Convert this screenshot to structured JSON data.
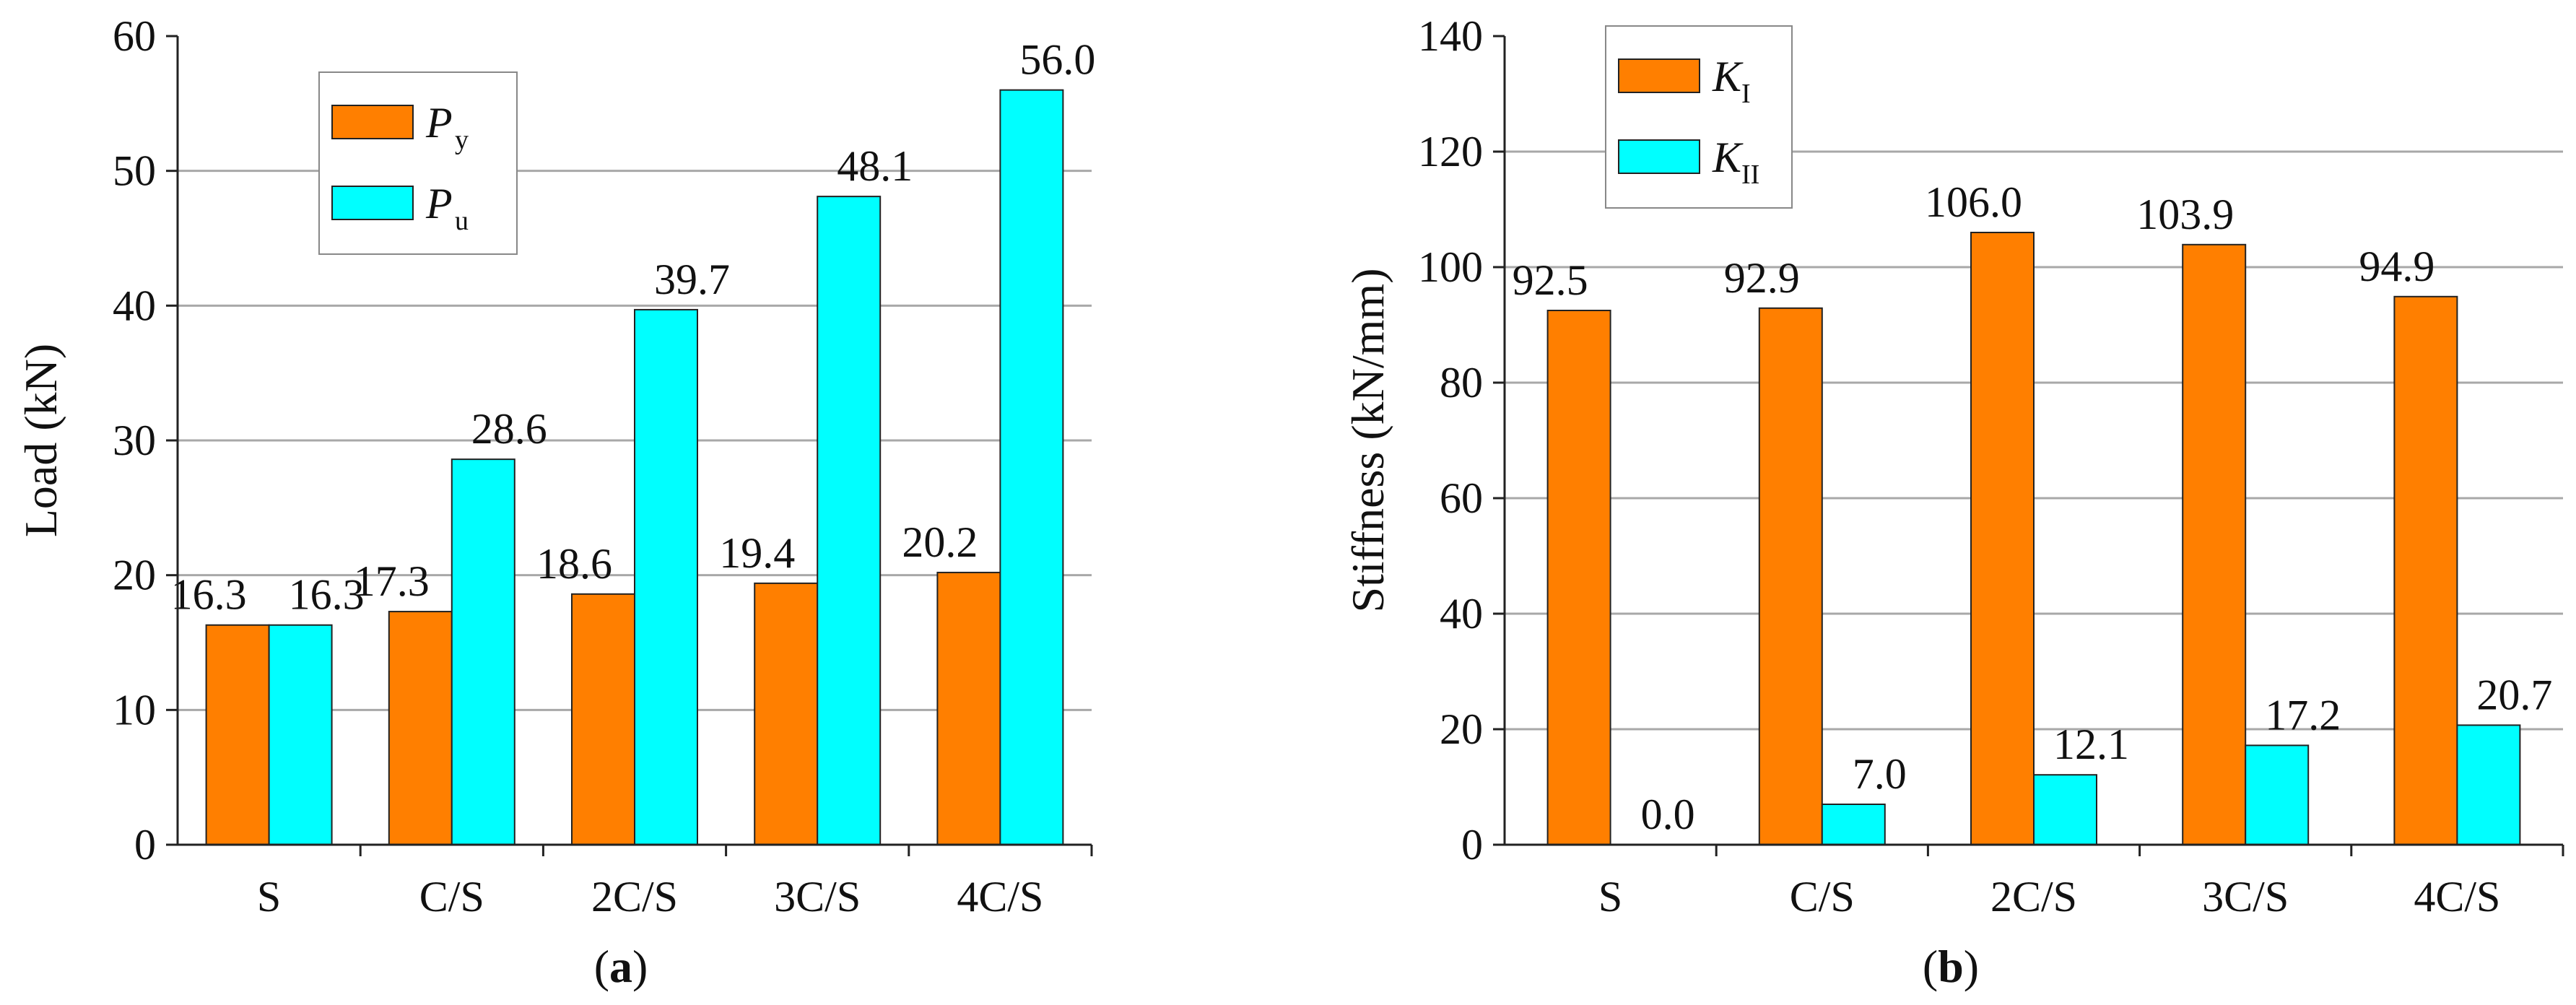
{
  "chart_data": [
    {
      "type": "bar",
      "panel_label": "a",
      "categories": [
        "S",
        "C/S",
        "2C/S",
        "3C/S",
        "4C/S"
      ],
      "series": [
        {
          "name": "P",
          "subscript": "y",
          "color": "#ff7f00",
          "values": [
            16.3,
            17.3,
            18.6,
            19.4,
            20.2
          ],
          "labels": [
            "16.3",
            "17.3",
            "18.6",
            "19.4",
            "20.2"
          ]
        },
        {
          "name": "P",
          "subscript": "u",
          "color": "#00ffff",
          "values": [
            16.3,
            28.6,
            39.7,
            48.1,
            56.0
          ],
          "labels": [
            "16.3",
            "28.6",
            "39.7",
            "48.1",
            "56.0"
          ]
        }
      ],
      "ylabel": "Load (kN)",
      "xlabel": "",
      "ylim": [
        0,
        60
      ],
      "yticks": [
        "0",
        "10",
        "20",
        "30",
        "40",
        "50",
        "60"
      ],
      "grid": true,
      "legend_position": "top-left"
    },
    {
      "type": "bar",
      "panel_label": "b",
      "categories": [
        "S",
        "C/S",
        "2C/S",
        "3C/S",
        "4C/S"
      ],
      "series": [
        {
          "name": "K",
          "subscript": "I",
          "color": "#ff7f00",
          "values": [
            92.5,
            92.9,
            106.0,
            103.9,
            94.9
          ],
          "labels": [
            "92.5",
            "92.9",
            "106.0",
            "103.9",
            "94.9"
          ]
        },
        {
          "name": "K",
          "subscript": "II",
          "color": "#00ffff",
          "values": [
            0.0,
            7.0,
            12.1,
            17.2,
            20.7
          ],
          "labels": [
            "0.0",
            "7.0",
            "12.1",
            "17.2",
            "20.7"
          ]
        }
      ],
      "ylabel": "Stiffness (kN/mm)",
      "xlabel": "",
      "ylim": [
        0,
        140
      ],
      "yticks": [
        "0",
        "20",
        "40",
        "60",
        "80",
        "100",
        "120",
        "140"
      ],
      "grid": true,
      "legend_position": "top-left"
    }
  ]
}
